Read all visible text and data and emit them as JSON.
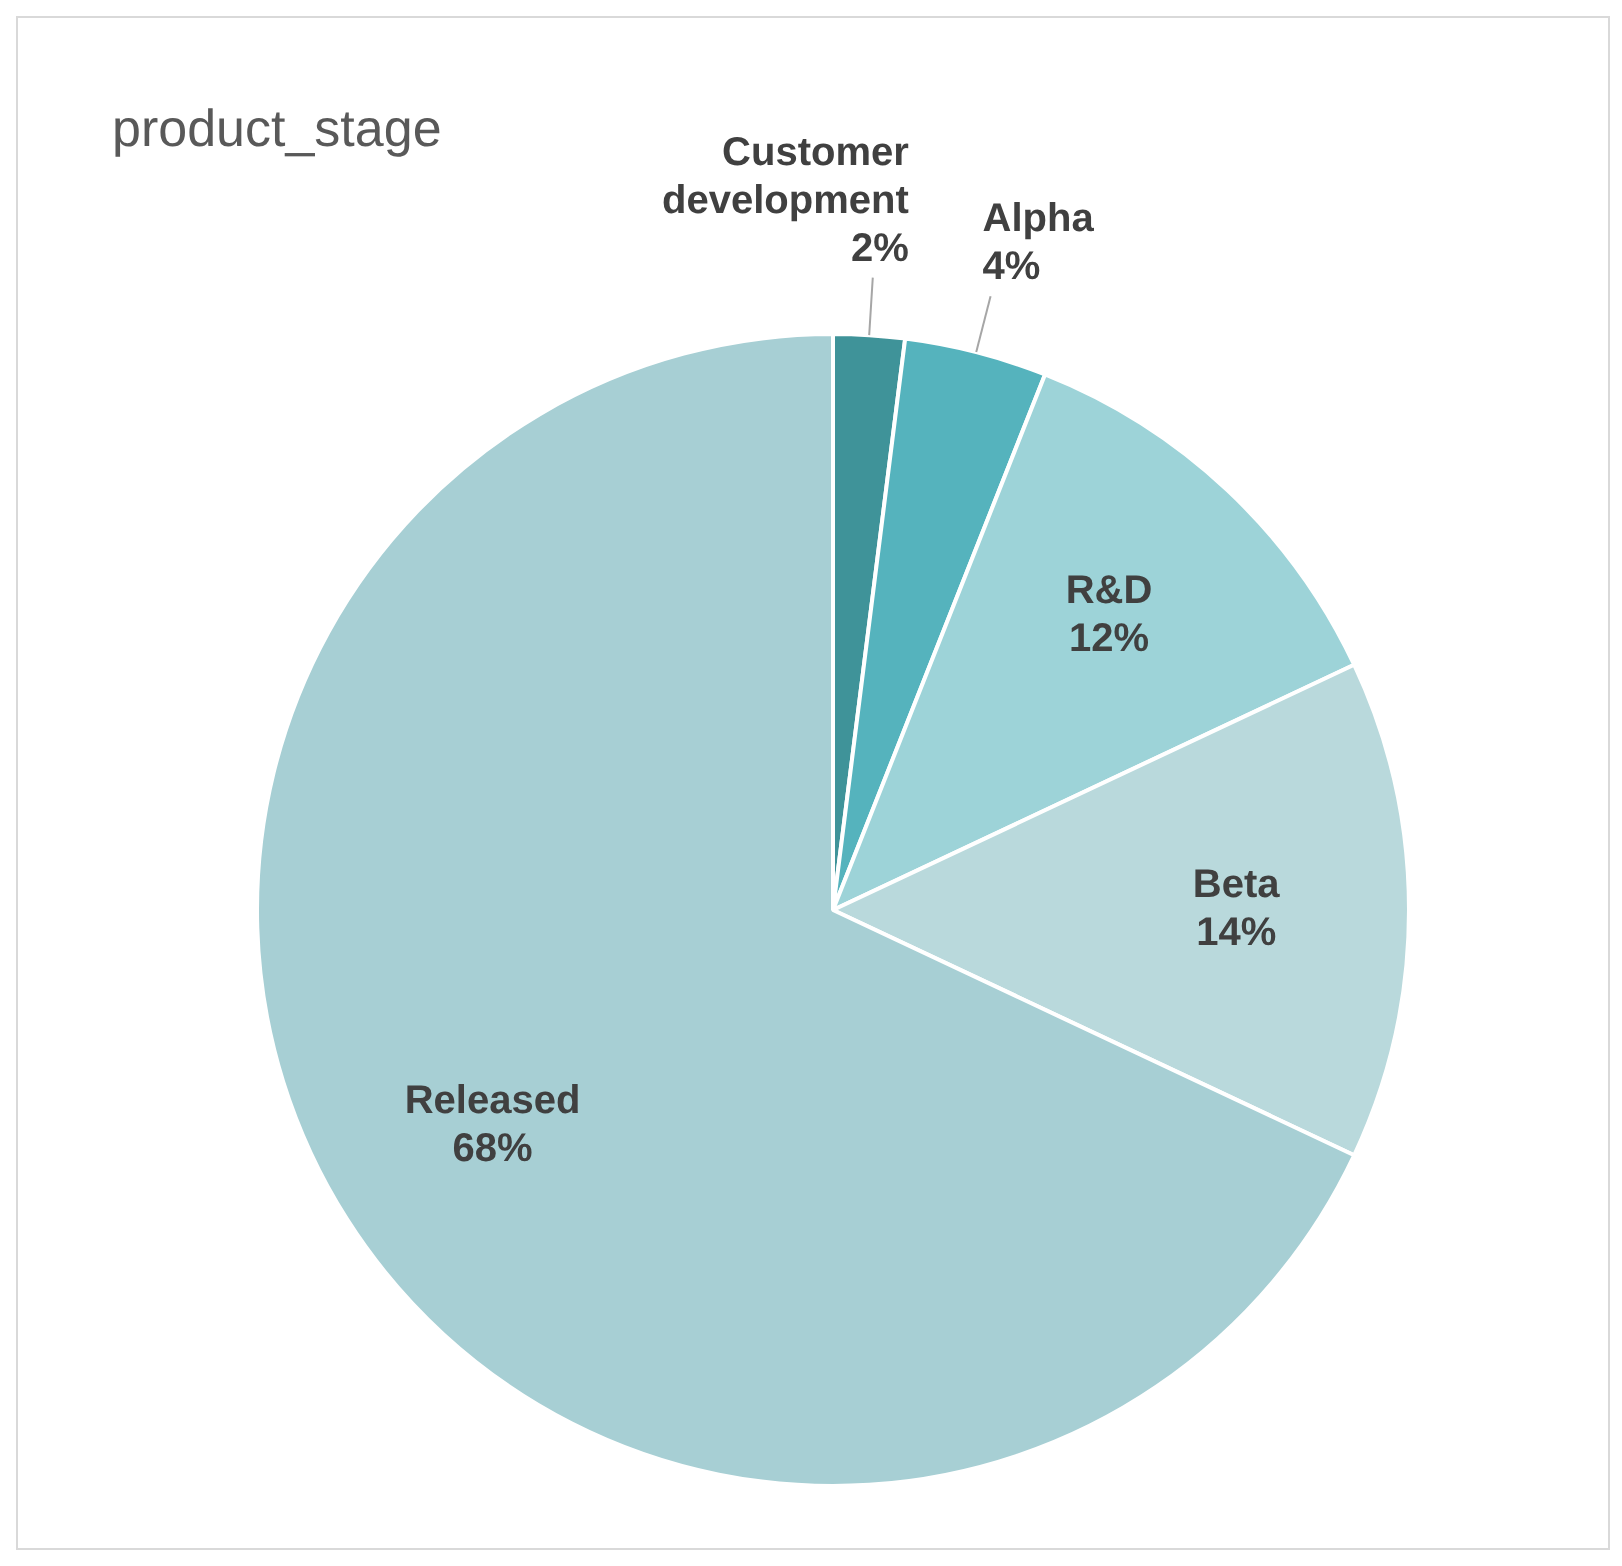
{
  "chart_data": {
    "type": "pie",
    "title": "product_stage",
    "categories": [
      "Customer development",
      "Alpha",
      "R&D",
      "Beta",
      "Released"
    ],
    "values": [
      2,
      4,
      12,
      14,
      68
    ],
    "colors": [
      "#3f9399",
      "#55b3bd",
      "#9dd3d8",
      "#b9d9dc",
      "#a7cfd4"
    ],
    "value_labels": [
      "2%",
      "4%",
      "12%",
      "14%",
      "68%"
    ],
    "legend": false
  }
}
